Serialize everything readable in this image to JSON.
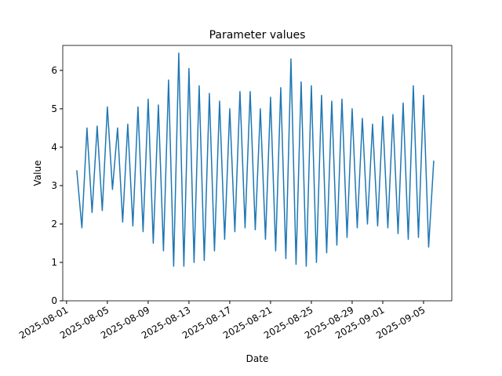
{
  "chart_data": {
    "type": "line",
    "title": "Parameter values",
    "xlabel": "Date",
    "ylabel": "Value",
    "x": [
      "2025-08-02 00:00",
      "2025-08-02 12:00",
      "2025-08-03 00:00",
      "2025-08-03 12:00",
      "2025-08-04 00:00",
      "2025-08-04 12:00",
      "2025-08-05 00:00",
      "2025-08-05 12:00",
      "2025-08-06 00:00",
      "2025-08-06 12:00",
      "2025-08-07 00:00",
      "2025-08-07 12:00",
      "2025-08-08 00:00",
      "2025-08-08 12:00",
      "2025-08-09 00:00",
      "2025-08-09 12:00",
      "2025-08-10 00:00",
      "2025-08-10 12:00",
      "2025-08-11 00:00",
      "2025-08-11 12:00",
      "2025-08-12 00:00",
      "2025-08-12 12:00",
      "2025-08-13 00:00",
      "2025-08-13 12:00",
      "2025-08-14 00:00",
      "2025-08-14 12:00",
      "2025-08-15 00:00",
      "2025-08-15 12:00",
      "2025-08-16 00:00",
      "2025-08-16 12:00",
      "2025-08-17 00:00",
      "2025-08-17 12:00",
      "2025-08-18 00:00",
      "2025-08-18 12:00",
      "2025-08-19 00:00",
      "2025-08-19 12:00",
      "2025-08-20 00:00",
      "2025-08-20 12:00",
      "2025-08-21 00:00",
      "2025-08-21 12:00",
      "2025-08-22 00:00",
      "2025-08-22 12:00",
      "2025-08-23 00:00",
      "2025-08-23 12:00",
      "2025-08-24 00:00",
      "2025-08-24 12:00",
      "2025-08-25 00:00",
      "2025-08-25 12:00",
      "2025-08-26 00:00",
      "2025-08-26 12:00",
      "2025-08-27 00:00",
      "2025-08-27 12:00",
      "2025-08-28 00:00",
      "2025-08-28 12:00",
      "2025-08-29 00:00",
      "2025-08-29 12:00",
      "2025-08-30 00:00",
      "2025-08-30 12:00",
      "2025-08-31 00:00",
      "2025-08-31 12:00",
      "2025-09-01 00:00",
      "2025-09-01 12:00",
      "2025-09-02 00:00",
      "2025-09-02 12:00",
      "2025-09-03 00:00",
      "2025-09-03 12:00",
      "2025-09-04 00:00",
      "2025-09-04 12:00",
      "2025-09-05 00:00",
      "2025-09-05 12:00",
      "2025-09-06 00:00"
    ],
    "series": [
      {
        "name": "Value",
        "color": "#1f77b4",
        "values": [
          3.4,
          1.9,
          4.5,
          2.3,
          4.55,
          2.35,
          5.05,
          2.9,
          4.5,
          2.05,
          4.6,
          1.95,
          5.05,
          1.8,
          5.25,
          1.5,
          5.1,
          1.3,
          5.75,
          0.9,
          6.45,
          0.9,
          6.05,
          1.0,
          5.6,
          1.05,
          5.4,
          1.3,
          5.2,
          1.6,
          5.0,
          1.8,
          5.45,
          1.9,
          5.45,
          1.85,
          5.0,
          1.6,
          5.3,
          1.3,
          5.55,
          1.1,
          6.3,
          0.95,
          5.7,
          0.9,
          5.6,
          1.0,
          5.35,
          1.25,
          5.2,
          1.45,
          5.25,
          1.65,
          5.0,
          1.9,
          4.75,
          2.0,
          4.6,
          1.95,
          4.8,
          1.9,
          4.85,
          1.75,
          5.15,
          1.6,
          5.6,
          1.65,
          5.35,
          1.4,
          3.65
        ]
      }
    ],
    "xlim": [
      "2025-07-31 15:00",
      "2025-09-07 18:30"
    ],
    "xticks": [
      "2025-08-01",
      "2025-08-05",
      "2025-08-09",
      "2025-08-13",
      "2025-08-17",
      "2025-08-21",
      "2025-08-25",
      "2025-08-29",
      "2025-09-01",
      "2025-09-05"
    ],
    "ylim": [
      0,
      6.65
    ],
    "yticks": [
      0,
      1,
      2,
      3,
      4,
      5,
      6
    ],
    "grid": false
  }
}
